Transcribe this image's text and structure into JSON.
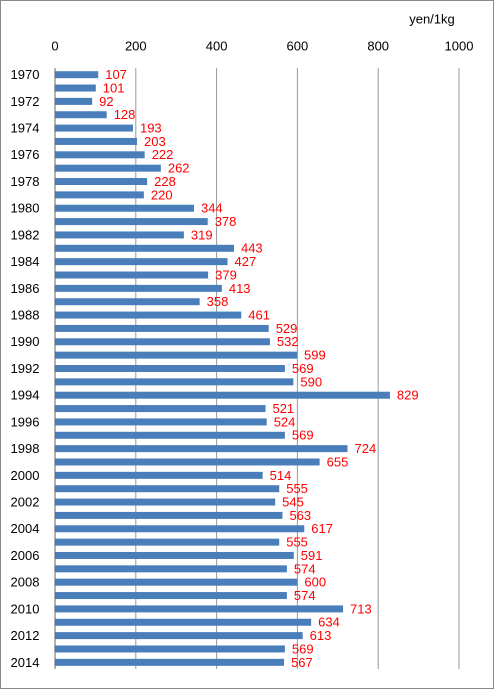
{
  "chart_data": {
    "type": "barh",
    "unit_label": "yen/1kg",
    "categories": [
      "1970",
      null,
      "1972",
      null,
      "1974",
      null,
      "1976",
      null,
      "1978",
      null,
      "1980",
      null,
      "1982",
      null,
      "1984",
      null,
      "1986",
      null,
      "1988",
      null,
      "1990",
      null,
      "1992",
      null,
      "1994",
      null,
      "1996",
      null,
      "1998",
      null,
      "2000",
      null,
      "2002",
      null,
      "2004",
      null,
      "2006",
      null,
      "2008",
      null,
      "2010",
      null,
      "2012",
      null,
      "2014"
    ],
    "values": [
      107,
      101,
      92,
      128,
      193,
      203,
      222,
      262,
      228,
      220,
      344,
      378,
      319,
      443,
      427,
      379,
      413,
      358,
      461,
      529,
      532,
      599,
      569,
      590,
      829,
      521,
      524,
      569,
      724,
      655,
      514,
      555,
      545,
      563,
      617,
      555,
      591,
      574,
      600,
      574,
      713,
      634,
      613,
      569,
      567
    ],
    "color": "#4a7ebb",
    "label_color": "#ff0000",
    "xlim": [
      0,
      1000
    ],
    "xticks": [
      0,
      200,
      400,
      600,
      800,
      1000
    ],
    "grid": true
  }
}
